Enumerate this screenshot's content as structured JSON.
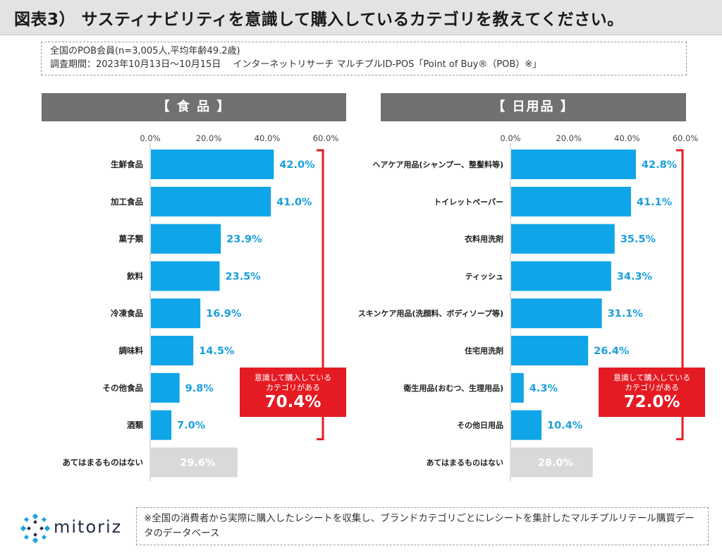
{
  "title": "図表3） サスティナビリティを意識して購入しているカテゴリを教えてください。",
  "info": {
    "line1": "全国のPOB会員(n=3,005人,平均年齢49.2歳)",
    "line2": "調査期間：2023年10月13日～10月15日　 インターネットリサーチ マルチプルID-POS「Point of Buy®（POB）※」"
  },
  "colors": {
    "bar": "#0ea5e9",
    "bar_none": "#d9d9d9",
    "value_label": "#1a9fdc",
    "accent_red": "#e51b24",
    "header_bg": "#717171"
  },
  "chart_data": [
    {
      "type": "bar",
      "orientation": "horizontal",
      "title": "【 食 品 】",
      "categories": [
        "生鮮食品",
        "加工食品",
        "菓子類",
        "飲料",
        "冷凍食品",
        "調味料",
        "その他食品",
        "酒類",
        "あてはまるものはない"
      ],
      "values": [
        42.0,
        41.0,
        23.9,
        23.5,
        16.9,
        14.5,
        9.8,
        7.0,
        29.6
      ],
      "value_labels": [
        "42.0%",
        "41.0%",
        "23.9%",
        "23.5%",
        "16.9%",
        "14.5%",
        "9.8%",
        "7.0%",
        "29.6%"
      ],
      "xlim": [
        0,
        60
      ],
      "ticks": [
        "0.0%",
        "20.0%",
        "40.0%",
        "60.0%"
      ],
      "callout": {
        "line1": "意識して購入している",
        "line2": "カテゴリがある",
        "value": "70.4%"
      }
    },
    {
      "type": "bar",
      "orientation": "horizontal",
      "title": "【 日用品 】",
      "categories": [
        "ヘアケア用品(シャンプー、整髪料等)",
        "トイレットペーパー",
        "衣料用洗剤",
        "ティッシュ",
        "スキンケア用品(洗顔料、ボディソープ等)",
        "住宅用洗剤",
        "衛生用品(おむつ、生理用品)",
        "その他日用品",
        "あてはまるものはない"
      ],
      "values": [
        42.8,
        41.1,
        35.5,
        34.3,
        31.1,
        26.4,
        4.3,
        10.4,
        28.0
      ],
      "value_labels": [
        "42.8%",
        "41.1%",
        "35.5%",
        "34.3%",
        "31.1%",
        "26.4%",
        "4.3%",
        "10.4%",
        "28.0%"
      ],
      "xlim": [
        0,
        60
      ],
      "ticks": [
        "0.0%",
        "20.0%",
        "40.0%",
        "60.0%"
      ],
      "callout": {
        "line1": "意識して購入している",
        "line2": "カテゴリがある",
        "value": "72.0%"
      }
    }
  ],
  "logo": {
    "text": "mitoriz",
    "icon": "mitoriz-logo-icon"
  },
  "footnote": "※全国の消費者から実際に購入したレシートを収集し、ブランドカテゴリごとにレシートを集計したマルチプルリテール購買データのデータベース"
}
